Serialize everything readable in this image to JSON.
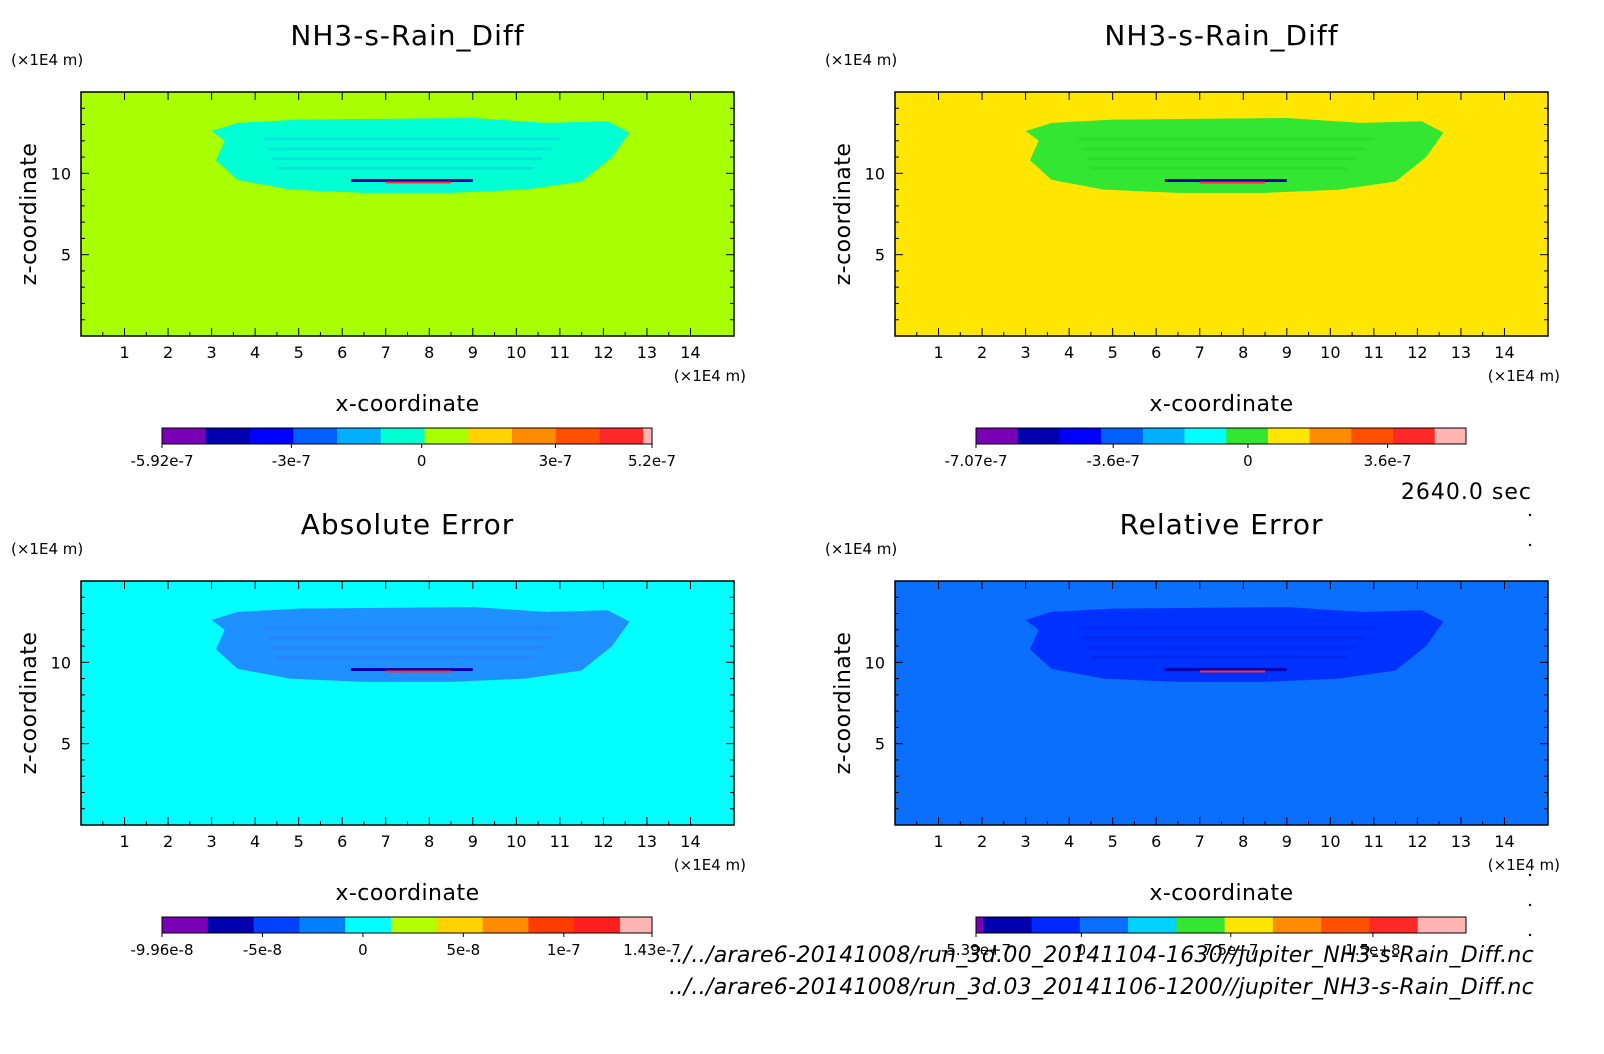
{
  "timestamp": "2640.0 sec",
  "file_paths": [
    "../../arare6-20141008/run_3d.00_20141104-1630//jupiter_NH3-s-Rain_Diff.nc",
    "../../arare6-20141008/run_3d.03_20141106-1200//jupiter_NH3-s-Rain_Diff.nc"
  ],
  "chart_data": [
    {
      "type": "heatmap",
      "title": "NH3-s-Rain_Diff",
      "xlabel": "x-coordinate",
      "ylabel": "z-coordinate",
      "x_unit": "(×1E4 m)",
      "y_unit": "(×1E4 m)",
      "xlim": [
        0,
        15
      ],
      "ylim": [
        0,
        15
      ],
      "x_ticks": [
        "1",
        "2",
        "3",
        "4",
        "5",
        "6",
        "7",
        "8",
        "9",
        "10",
        "11",
        "12",
        "13",
        "14"
      ],
      "y_ticks": [
        "5",
        "10"
      ],
      "background_color": "#a8ff00",
      "cloud_color": "#00ffd2",
      "band_color": "#00e0e0",
      "colorbar": {
        "colors": [
          "#7a00b8",
          "#0000b0",
          "#0000ff",
          "#0060ff",
          "#00b0ff",
          "#00ffd2",
          "#a8ff00",
          "#ffd200",
          "#ff8c00",
          "#ff5000",
          "#ff2828",
          "#ffb4b4"
        ],
        "weights": [
          1,
          1,
          1,
          1,
          1,
          1,
          1,
          1,
          1,
          1,
          1,
          0.2
        ],
        "labels": [
          "-5.92e-7",
          "-3e-7",
          "0",
          "3e-7",
          "5.2e-7"
        ],
        "label_fracs": [
          0.0,
          0.264,
          0.53,
          0.803,
          1.0
        ]
      }
    },
    {
      "type": "heatmap",
      "title": "NH3-s-Rain_Diff",
      "xlabel": "x-coordinate",
      "ylabel": "z-coordinate",
      "x_unit": "(×1E4 m)",
      "y_unit": "(×1E4 m)",
      "xlim": [
        0,
        15
      ],
      "ylim": [
        0,
        15
      ],
      "x_ticks": [
        "1",
        "2",
        "3",
        "4",
        "5",
        "6",
        "7",
        "8",
        "9",
        "10",
        "11",
        "12",
        "13",
        "14"
      ],
      "y_ticks": [
        "5",
        "10"
      ],
      "background_color": "#ffe600",
      "cloud_color": "#32e632",
      "band_color": "#28dc28",
      "colorbar": {
        "colors": [
          "#7a00b8",
          "#0000b0",
          "#0000ff",
          "#0060ff",
          "#00b0ff",
          "#00ffff",
          "#32e632",
          "#ffe600",
          "#ff8c00",
          "#ff5000",
          "#ff2828",
          "#ffb4b4"
        ],
        "weights": [
          1,
          1,
          1,
          1,
          1,
          1,
          1,
          1,
          1,
          1,
          1,
          0.75
        ],
        "labels": [
          "-7.07e-7",
          "-3.6e-7",
          "0",
          "3.6e-7"
        ],
        "label_fracs": [
          0.0,
          0.28,
          0.555,
          0.84
        ]
      }
    },
    {
      "type": "heatmap",
      "title": "Absolute Error",
      "xlabel": "x-coordinate",
      "ylabel": "z-coordinate",
      "x_unit": "(×1E4 m)",
      "y_unit": "(×1E4 m)",
      "xlim": [
        0,
        15
      ],
      "ylim": [
        0,
        15
      ],
      "x_ticks": [
        "1",
        "2",
        "3",
        "4",
        "5",
        "6",
        "7",
        "8",
        "9",
        "10",
        "11",
        "12",
        "13",
        "14"
      ],
      "y_ticks": [
        "5",
        "10"
      ],
      "background_color": "#00ffff",
      "cloud_color": "#1e90ff",
      "band_color": "#2a80ff",
      "colorbar": {
        "colors": [
          "#7a00b8",
          "#0000b0",
          "#0040ff",
          "#0080ff",
          "#00ffff",
          "#b4ff00",
          "#ffd200",
          "#ff8c00",
          "#ff3c00",
          "#ff1e1e",
          "#ffb4b4"
        ],
        "weights": [
          1,
          1,
          1,
          1,
          1,
          1,
          1,
          1,
          1,
          1,
          0.7
        ],
        "labels": [
          "-9.96e-8",
          "-5e-8",
          "0",
          "5e-8",
          "1e-7",
          "1.43e-7"
        ],
        "label_fracs": [
          0.0,
          0.205,
          0.41,
          0.615,
          0.82,
          1.0
        ]
      }
    },
    {
      "type": "heatmap",
      "title": "Relative Error",
      "xlabel": "x-coordinate",
      "ylabel": "z-coordinate",
      "x_unit": "(×1E4 m)",
      "y_unit": "(×1E4 m)",
      "xlim": [
        0,
        15
      ],
      "ylim": [
        0,
        15
      ],
      "x_ticks": [
        "1",
        "2",
        "3",
        "4",
        "5",
        "6",
        "7",
        "8",
        "9",
        "10",
        "11",
        "12",
        "13",
        "14"
      ],
      "y_ticks": [
        "5",
        "10"
      ],
      "background_color": "#0a6eff",
      "cloud_color": "#0032ff",
      "band_color": "#0028ee",
      "colorbar": {
        "colors": [
          "#7a00b8",
          "#0000b0",
          "#0028ff",
          "#0a6eff",
          "#00d2ff",
          "#32e632",
          "#ffe600",
          "#ff8c00",
          "#ff5000",
          "#ff2828",
          "#ffb4b4"
        ],
        "weights": [
          0.15,
          1,
          1,
          1,
          1,
          1,
          1,
          1,
          1,
          1,
          1
        ],
        "labels": [
          "-5.39e+7",
          "0",
          "7.5e+7",
          "1.5e+8"
        ],
        "label_fracs": [
          0.0,
          0.215,
          0.52,
          0.81
        ]
      }
    }
  ]
}
